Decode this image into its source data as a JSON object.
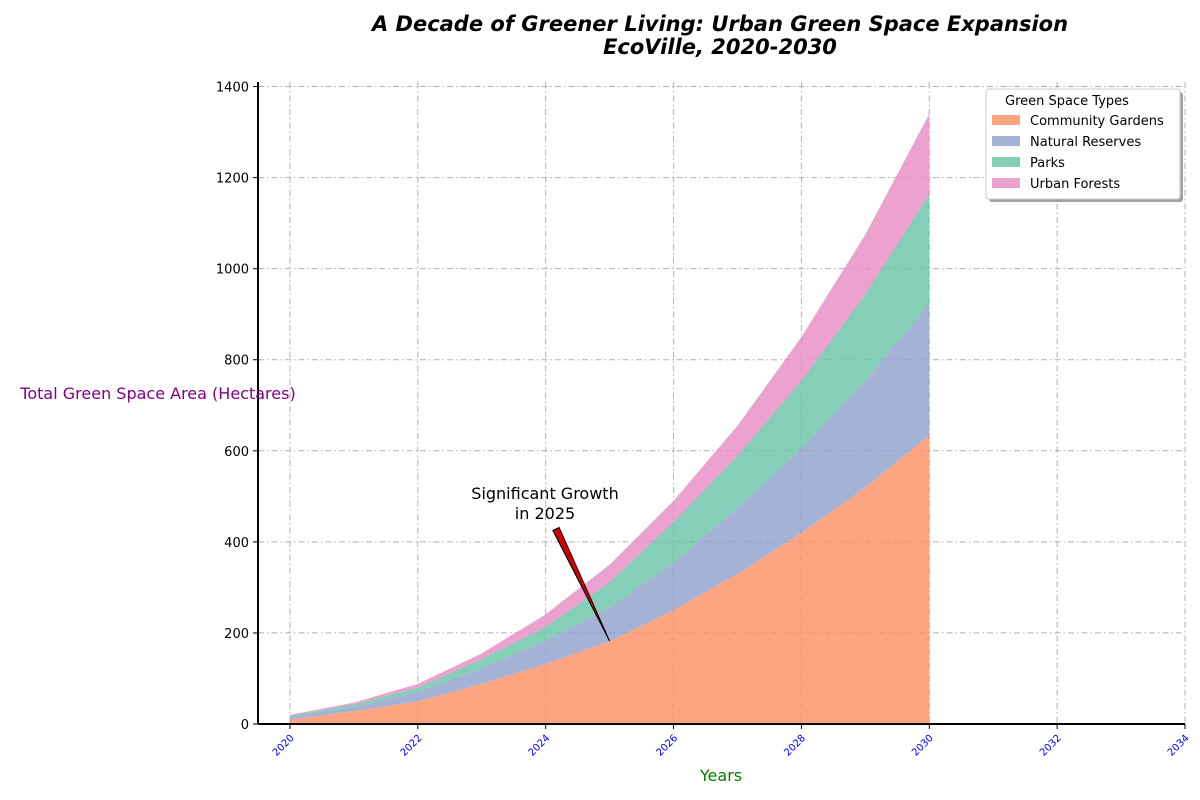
{
  "chart_data": {
    "type": "area",
    "stacked": true,
    "title": "A Decade of Greener Living: Urban Green Space Expansion",
    "subtitle": "EcoVille, 2020-2030",
    "xlabel": "Years",
    "ylabel": "Total Green Space Area (Hectares)",
    "x": [
      2020,
      2021,
      2022,
      2023,
      2024,
      2025,
      2026,
      2027,
      2028,
      2029,
      2030
    ],
    "xlim": [
      2019.5,
      2034
    ],
    "ylim": [
      0,
      1410
    ],
    "xticks": [
      "2020",
      "2022",
      "2024",
      "2026",
      "2028",
      "2030",
      "2032",
      "2034"
    ],
    "yticks": [
      "0",
      "200",
      "400",
      "600",
      "800",
      "1000",
      "1200",
      "1400"
    ],
    "grid": true,
    "legend": {
      "title": "Green Space Types",
      "placement": "top-right"
    },
    "series": [
      {
        "name": "Community Gardens",
        "color": "#fc8d62",
        "values": [
          10,
          28,
          50,
          88,
          132,
          182,
          250,
          330,
          420,
          520,
          635
        ]
      },
      {
        "name": "Natural Reserves",
        "color": "#8da0cb",
        "values": [
          5,
          10,
          20,
          35,
          52,
          75,
          105,
          145,
          185,
          235,
          290
        ]
      },
      {
        "name": "Parks",
        "color": "#66c2a5",
        "values": [
          3,
          5,
          10,
          20,
          30,
          55,
          90,
          115,
          150,
          190,
          240
        ]
      },
      {
        "name": "Urban Forests",
        "color": "#e78ac3",
        "values": [
          2,
          4,
          8,
          12,
          27,
          38,
          45,
          65,
          95,
          130,
          175
        ]
      }
    ],
    "annotation": {
      "text_line1": "Significant Growth",
      "text_line2": "in 2025",
      "x": 2025,
      "y": 182,
      "arrow_color": "#cc0000"
    }
  }
}
